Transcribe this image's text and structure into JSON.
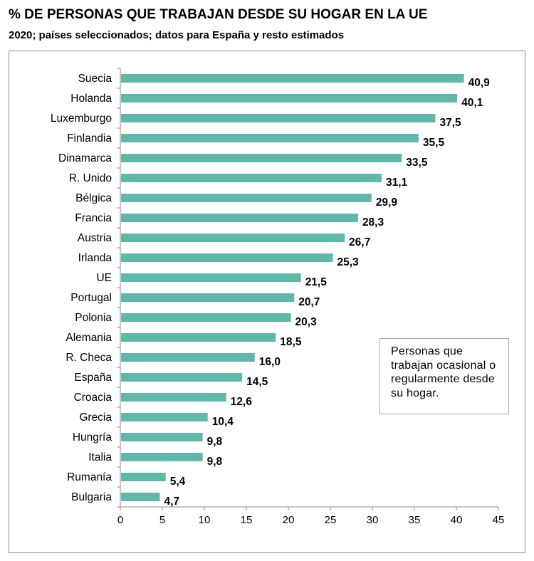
{
  "header": {
    "title": "% DE PERSONAS QUE TRABAJAN DESDE SU HOGAR EN LA UE",
    "subtitle": "2020; países seleccionados; datos para España y resto estimados"
  },
  "legend": {
    "text": "Personas que trabajan ocasional o regularmente desde su hogar."
  },
  "colors": {
    "bar": "#5fb8aa",
    "axis": "#8c8c8c"
  },
  "chart_data": {
    "type": "bar",
    "orientation": "horizontal",
    "title": "% DE PERSONAS QUE TRABAJAN DESDE SU HOGAR EN LA UE",
    "subtitle": "2020; países seleccionados; datos para España y resto estimados",
    "xlabel": "",
    "ylabel": "",
    "xlim": [
      0,
      45
    ],
    "xticks": [
      0,
      5,
      10,
      15,
      20,
      25,
      30,
      35,
      40,
      45
    ],
    "grid": false,
    "legend_text": "Personas que trabajan ocasional o regularmente desde su hogar.",
    "categories": [
      "Suecia",
      "Holanda",
      "Luxemburgo",
      "Finlandia",
      "Dinamarca",
      "R. Unido",
      "Bélgica",
      "Francia",
      "Austria",
      "Irlanda",
      "UE",
      "Portugal",
      "Polonia",
      "Alemania",
      "R. Checa",
      "España",
      "Croacia",
      "Grecia",
      "Hungría",
      "Italia",
      "Rumanía",
      "Bulgaria"
    ],
    "values": [
      40.9,
      40.1,
      37.5,
      35.5,
      33.5,
      31.1,
      29.9,
      28.3,
      26.7,
      25.3,
      21.5,
      20.7,
      20.3,
      18.5,
      16.0,
      14.5,
      12.6,
      10.4,
      9.8,
      9.8,
      5.4,
      4.7
    ],
    "value_labels": [
      "40,9",
      "40,1",
      "37,5",
      "35,5",
      "33,5",
      "31,1",
      "29,9",
      "28,3",
      "26,7",
      "25,3",
      "21,5",
      "20,7",
      "20,3",
      "18,5",
      "16,0",
      "14,5",
      "12,6",
      "10,4",
      "9,8",
      "9,8",
      "5,4",
      "4,7"
    ],
    "xtick_labels": [
      "0",
      "5",
      "10",
      "15",
      "20",
      "25",
      "30",
      "35",
      "40",
      "45"
    ]
  }
}
